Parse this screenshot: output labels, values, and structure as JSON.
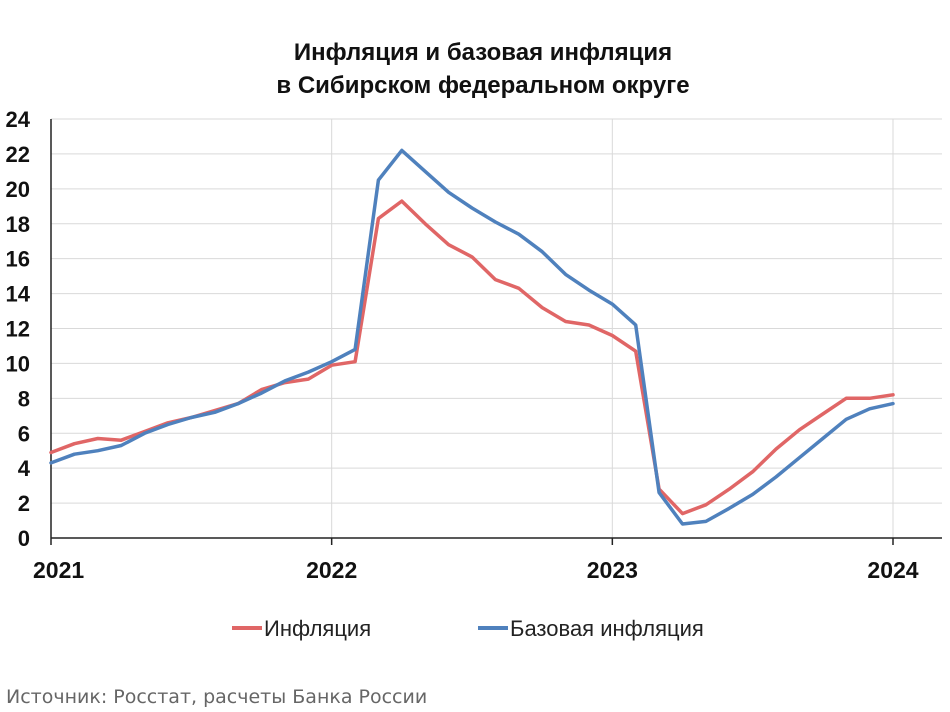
{
  "chart_data": {
    "type": "line",
    "title_line1": "Инфляция и базовая инфляция",
    "title_line2": "в Сибирском федеральном округе",
    "xlabel": "",
    "ylabel": "",
    "ylim": [
      0,
      24
    ],
    "yticks": [
      "0",
      "2",
      "4",
      "6",
      "8",
      "10",
      "12",
      "14",
      "16",
      "18",
      "20",
      "22",
      "24"
    ],
    "xticks": [
      "2021",
      "2022",
      "2023",
      "2024"
    ],
    "x": [
      "2021-01",
      "2021-02",
      "2021-03",
      "2021-04",
      "2021-05",
      "2021-06",
      "2021-07",
      "2021-08",
      "2021-09",
      "2021-10",
      "2021-11",
      "2021-12",
      "2022-01",
      "2022-02",
      "2022-03",
      "2022-04",
      "2022-05",
      "2022-06",
      "2022-07",
      "2022-08",
      "2022-09",
      "2022-10",
      "2022-11",
      "2022-12",
      "2023-01",
      "2023-02",
      "2023-03",
      "2023-04",
      "2023-05",
      "2023-06",
      "2023-07",
      "2023-08",
      "2023-09",
      "2023-10",
      "2023-11",
      "2023-12",
      "2024-01"
    ],
    "series": [
      {
        "name": "Инфляция",
        "color": "#e06666",
        "values": [
          4.9,
          5.4,
          5.7,
          5.6,
          6.1,
          6.6,
          6.9,
          7.3,
          7.7,
          8.5,
          8.9,
          9.1,
          9.9,
          10.1,
          18.3,
          19.3,
          18.0,
          16.8,
          16.1,
          14.8,
          14.3,
          13.2,
          12.4,
          12.2,
          11.6,
          10.7,
          2.8,
          1.4,
          1.9,
          2.8,
          3.8,
          5.1,
          6.2,
          7.1,
          8.0,
          8.0,
          8.2
        ]
      },
      {
        "name": "Базовая инфляция",
        "color": "#4f81bd",
        "values": [
          4.3,
          4.8,
          5.0,
          5.3,
          6.0,
          6.5,
          6.9,
          7.2,
          7.7,
          8.3,
          9.0,
          9.5,
          10.1,
          10.8,
          20.5,
          22.2,
          21.0,
          19.8,
          18.9,
          18.1,
          17.4,
          16.4,
          15.1,
          14.2,
          13.4,
          12.2,
          2.6,
          0.8,
          0.95,
          1.7,
          2.5,
          3.5,
          4.6,
          5.7,
          6.8,
          7.4,
          7.7
        ]
      }
    ],
    "grid": true,
    "legend_position": "bottom"
  },
  "source_text": "Источник: Росстат, расчеты Банка России"
}
